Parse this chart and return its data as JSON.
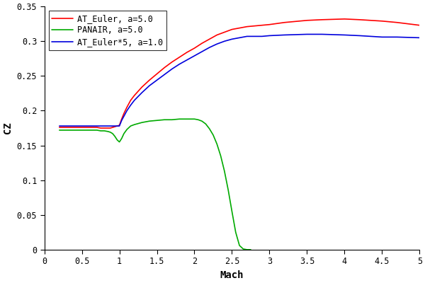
{
  "xlabel": "Mach",
  "ylabel": "CZ",
  "xlim": [
    0,
    5
  ],
  "ylim": [
    0,
    0.35
  ],
  "xticks": [
    0,
    0.5,
    1.0,
    1.5,
    2.0,
    2.5,
    3.0,
    3.5,
    4.0,
    4.5,
    5.0
  ],
  "yticks": [
    0,
    0.05,
    0.1,
    0.15,
    0.2,
    0.25,
    0.3,
    0.35
  ],
  "background_color": "#ffffff",
  "series": {
    "AT_Euler_a5": {
      "label": "AT_Euler, a=5.0",
      "color": "#ff0000",
      "legend_color": "#000000",
      "mach": [
        0.2,
        0.25,
        0.3,
        0.35,
        0.4,
        0.45,
        0.5,
        0.55,
        0.6,
        0.65,
        0.7,
        0.75,
        0.8,
        0.85,
        0.88,
        0.91,
        0.94,
        0.97,
        1.0,
        1.03,
        1.06,
        1.1,
        1.15,
        1.2,
        1.3,
        1.4,
        1.5,
        1.6,
        1.7,
        1.8,
        1.9,
        2.0,
        2.1,
        2.2,
        2.3,
        2.4,
        2.5,
        2.6,
        2.7,
        2.8,
        2.9,
        3.0,
        3.2,
        3.5,
        3.7,
        4.0,
        4.2,
        4.5,
        4.7,
        5.0
      ],
      "cz": [
        0.176,
        0.176,
        0.176,
        0.176,
        0.176,
        0.176,
        0.176,
        0.176,
        0.176,
        0.176,
        0.176,
        0.175,
        0.175,
        0.175,
        0.175,
        0.176,
        0.177,
        0.178,
        0.179,
        0.188,
        0.196,
        0.205,
        0.215,
        0.222,
        0.234,
        0.244,
        0.253,
        0.262,
        0.27,
        0.277,
        0.284,
        0.29,
        0.297,
        0.303,
        0.309,
        0.313,
        0.317,
        0.319,
        0.321,
        0.322,
        0.323,
        0.324,
        0.327,
        0.33,
        0.331,
        0.332,
        0.331,
        0.329,
        0.327,
        0.323
      ]
    },
    "PANAIR_a5": {
      "label": "PANAIR, a=5.0",
      "color": "#00aa00",
      "legend_color": "#00aa00",
      "mach": [
        0.2,
        0.25,
        0.3,
        0.35,
        0.4,
        0.45,
        0.5,
        0.55,
        0.6,
        0.65,
        0.7,
        0.75,
        0.8,
        0.85,
        0.88,
        0.91,
        0.94,
        0.97,
        1.0,
        1.03,
        1.06,
        1.1,
        1.15,
        1.2,
        1.3,
        1.4,
        1.5,
        1.6,
        1.7,
        1.8,
        1.9,
        2.0,
        2.05,
        2.1,
        2.15,
        2.2,
        2.25,
        2.3,
        2.35,
        2.4,
        2.45,
        2.5,
        2.55,
        2.6,
        2.65,
        2.7,
        2.75
      ],
      "cz": [
        0.172,
        0.172,
        0.172,
        0.172,
        0.172,
        0.172,
        0.172,
        0.172,
        0.172,
        0.172,
        0.172,
        0.171,
        0.171,
        0.17,
        0.169,
        0.167,
        0.163,
        0.158,
        0.155,
        0.16,
        0.167,
        0.173,
        0.178,
        0.18,
        0.183,
        0.185,
        0.186,
        0.187,
        0.187,
        0.188,
        0.188,
        0.188,
        0.187,
        0.185,
        0.181,
        0.174,
        0.165,
        0.152,
        0.135,
        0.113,
        0.086,
        0.055,
        0.025,
        0.006,
        0.001,
        0.0,
        0.0
      ]
    },
    "AT_Euler_a1": {
      "label": "AT_Euler*5, a=1.0",
      "color": "#0000dd",
      "legend_color": "#000000",
      "mach": [
        0.2,
        0.25,
        0.3,
        0.35,
        0.4,
        0.45,
        0.5,
        0.55,
        0.6,
        0.65,
        0.7,
        0.75,
        0.8,
        0.85,
        0.88,
        0.91,
        0.94,
        0.97,
        1.0,
        1.03,
        1.06,
        1.1,
        1.15,
        1.2,
        1.3,
        1.4,
        1.5,
        1.6,
        1.7,
        1.8,
        1.9,
        2.0,
        2.1,
        2.2,
        2.3,
        2.4,
        2.5,
        2.6,
        2.7,
        2.8,
        2.9,
        3.0,
        3.2,
        3.5,
        3.7,
        4.0,
        4.2,
        4.5,
        4.7,
        5.0
      ],
      "cz": [
        0.178,
        0.178,
        0.178,
        0.178,
        0.178,
        0.178,
        0.178,
        0.178,
        0.178,
        0.178,
        0.178,
        0.178,
        0.178,
        0.178,
        0.178,
        0.178,
        0.178,
        0.178,
        0.178,
        0.186,
        0.192,
        0.2,
        0.208,
        0.215,
        0.226,
        0.236,
        0.244,
        0.252,
        0.26,
        0.267,
        0.273,
        0.279,
        0.285,
        0.291,
        0.296,
        0.3,
        0.303,
        0.305,
        0.307,
        0.307,
        0.307,
        0.308,
        0.309,
        0.31,
        0.31,
        0.309,
        0.308,
        0.306,
        0.306,
        0.305
      ]
    }
  },
  "legend_entries": [
    {
      "label": "AT_Euler, a=5.0",
      "line_color": "#ff0000",
      "text_color": "#000000"
    },
    {
      "label": "PANAIR, a=5.0",
      "line_color": "#00aa00",
      "text_color": "#000000"
    },
    {
      "label": "AT_Euler*5, a=1.0",
      "line_color": "#0000dd",
      "text_color": "#000000"
    }
  ],
  "tick_fontsize": 8.5,
  "label_fontsize": 10,
  "linewidth": 1.2
}
